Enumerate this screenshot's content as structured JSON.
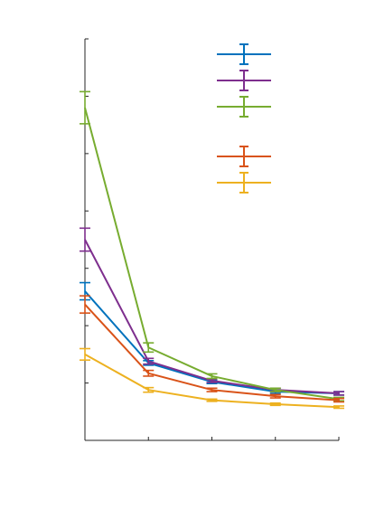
{
  "chart_data": {
    "type": "line",
    "title": "",
    "xlabel": "",
    "ylabel": "",
    "x": [
      0,
      1,
      2,
      3,
      4
    ],
    "xlim": [
      0,
      4
    ],
    "ylim": [
      0,
      7
    ],
    "xticks": [
      0,
      1,
      2,
      3,
      4
    ],
    "yticks": [
      0,
      1,
      2,
      3,
      4,
      5,
      6,
      7
    ],
    "grid": false,
    "legend_position": "top-right",
    "series": [
      {
        "color": "#0072bd",
        "values": [
          2.6,
          1.35,
          1.02,
          0.85,
          0.82
        ],
        "err": [
          0.15,
          0.04,
          0.03,
          0.03,
          0.03
        ]
      },
      {
        "color": "#7e2f8e",
        "values": [
          3.5,
          1.38,
          1.04,
          0.88,
          0.82
        ],
        "err": [
          0.2,
          0.05,
          0.03,
          0.03,
          0.03
        ]
      },
      {
        "color": "#77ac30",
        "values": [
          5.8,
          1.62,
          1.12,
          0.88,
          0.72
        ],
        "err": [
          0.28,
          0.08,
          0.04,
          0.03,
          0.03
        ]
      },
      {
        "color": "#d95319",
        "values": [
          2.37,
          1.17,
          0.88,
          0.77,
          0.7
        ],
        "err": [
          0.15,
          0.05,
          0.03,
          0.03,
          0.03
        ]
      },
      {
        "color": "#edb120",
        "values": [
          1.5,
          0.88,
          0.7,
          0.63,
          0.58
        ],
        "err": [
          0.1,
          0.04,
          0.02,
          0.02,
          0.02
        ]
      }
    ],
    "legend_gap_after": 2
  }
}
